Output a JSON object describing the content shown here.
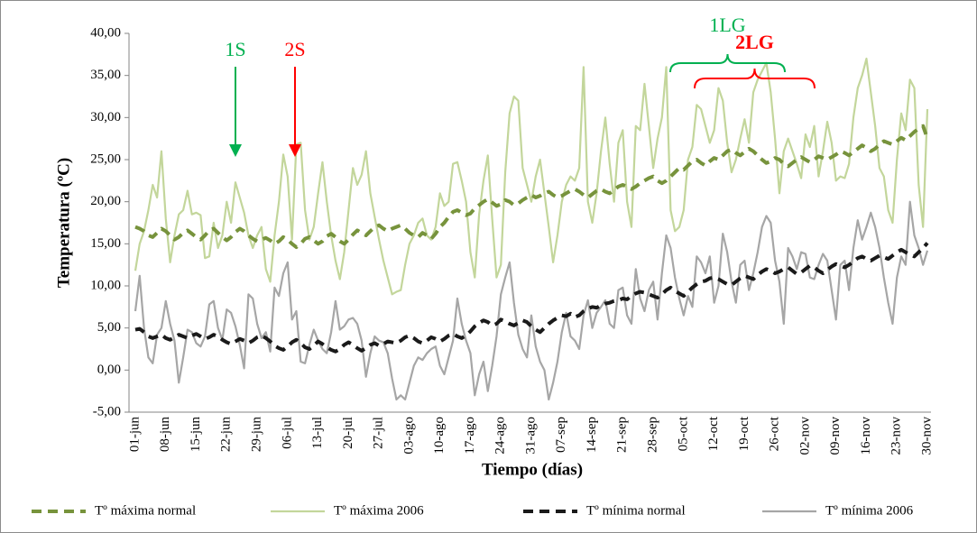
{
  "chart_data": {
    "type": "line",
    "y_label": "Temperatura (ºC)",
    "x_label": "Tiempo (días)",
    "legend": "bottom",
    "ylim": [
      -5,
      40
    ],
    "yticks": [
      {
        "value": -5,
        "label": "-5,00"
      },
      {
        "value": 0,
        "label": "0,00"
      },
      {
        "value": 5,
        "label": "5,00"
      },
      {
        "value": 10,
        "label": "10,00"
      },
      {
        "value": 15,
        "label": "15,00"
      },
      {
        "value": 20,
        "label": "20,00"
      },
      {
        "value": 25,
        "label": "25,00"
      },
      {
        "value": 30,
        "label": "30,00"
      },
      {
        "value": 35,
        "label": "35,00"
      },
      {
        "value": 40,
        "label": "40,00"
      }
    ],
    "annotations": [
      {
        "text": "1S",
        "color": "#00b050"
      },
      {
        "text": "2S",
        "color": "#ff0000"
      },
      {
        "text": "1LG",
        "color": "#00b050"
      },
      {
        "text": "2LG",
        "color": "#ff0000"
      }
    ],
    "categories": [
      "01-jun",
      null,
      null,
      null,
      null,
      null,
      null,
      "08-jun",
      null,
      null,
      null,
      null,
      null,
      null,
      "15-jun",
      null,
      null,
      null,
      null,
      null,
      null,
      "22-jun",
      null,
      null,
      null,
      null,
      null,
      null,
      "29-jun",
      null,
      null,
      null,
      null,
      null,
      null,
      "06-jul",
      null,
      null,
      null,
      null,
      null,
      null,
      "13-jul",
      null,
      null,
      null,
      null,
      null,
      null,
      "20-jul",
      null,
      null,
      null,
      null,
      null,
      null,
      "27-jul",
      null,
      null,
      null,
      null,
      null,
      null,
      "03-ago",
      null,
      null,
      null,
      null,
      null,
      null,
      "10-ago",
      null,
      null,
      null,
      null,
      null,
      null,
      "17-ago",
      null,
      null,
      null,
      null,
      null,
      null,
      "24-ago",
      null,
      null,
      null,
      null,
      null,
      null,
      "31-ago",
      null,
      null,
      null,
      null,
      null,
      null,
      "07-sep",
      null,
      null,
      null,
      null,
      null,
      null,
      "14-sep",
      null,
      null,
      null,
      null,
      null,
      null,
      "21-sep",
      null,
      null,
      null,
      null,
      null,
      null,
      "28-sep",
      null,
      null,
      null,
      null,
      null,
      null,
      "05-oct",
      null,
      null,
      null,
      null,
      null,
      null,
      "12-oct",
      null,
      null,
      null,
      null,
      null,
      null,
      "19-oct",
      null,
      null,
      null,
      null,
      null,
      null,
      "26-oct",
      null,
      null,
      null,
      null,
      null,
      null,
      "02-nov",
      null,
      null,
      null,
      null,
      null,
      null,
      "09-nov",
      null,
      null,
      null,
      null,
      null,
      null,
      "16-nov",
      null,
      null,
      null,
      null,
      null,
      null,
      "23-nov",
      null,
      null,
      null,
      null,
      null,
      null,
      "30-nov"
    ],
    "series": [
      {
        "name": "Tº máxima normal",
        "color": "#77933c",
        "dashed": true,
        "values": [
          17,
          16.8,
          16.5,
          16,
          15.8,
          16.3,
          16.8,
          16.5,
          16,
          15.5,
          15.8,
          16.3,
          16.6,
          16.2,
          15.8,
          15.5,
          16,
          16.6,
          16.8,
          16.3,
          15.8,
          15.4,
          15.8,
          16.4,
          16.8,
          16.5,
          16,
          15.6,
          15.3,
          15.5,
          15.7,
          15.4,
          15,
          15.3,
          15.8,
          15.5,
          15,
          14.6,
          15,
          15.6,
          15.8,
          15.4,
          15,
          15.3,
          15.9,
          16.2,
          15.8,
          15.3,
          15,
          15.5,
          16.1,
          16.6,
          16.3,
          16,
          16.5,
          17,
          17.2,
          16.8,
          16.5,
          16.8,
          17,
          17.2,
          16.8,
          16.3,
          16,
          15.8,
          16.3,
          16,
          15.6,
          16.2,
          17,
          17.5,
          18.2,
          18.8,
          19,
          18.7,
          18.4,
          18.6,
          19.2,
          19.6,
          20,
          20.3,
          19.9,
          19.5,
          19.7,
          20.2,
          20,
          19.6,
          19.8,
          20.2,
          20.5,
          20.8,
          20.5,
          20.7,
          21,
          21.2,
          20.8,
          20.5,
          20.7,
          21,
          21.3,
          21.5,
          21.2,
          20.8,
          20.5,
          20.9,
          21.3,
          21.5,
          21.2,
          21,
          21.4,
          21.8,
          22,
          21.8,
          21.5,
          21.8,
          22.2,
          22.5,
          22.8,
          23,
          22.5,
          22.2,
          22.5,
          23,
          23.5,
          24,
          23.8,
          24.3,
          24.8,
          25,
          24.6,
          24.3,
          24.8,
          25.2,
          25,
          25.5,
          26,
          26.2,
          25.8,
          25.5,
          25.9,
          26.3,
          26,
          25.5,
          25,
          24.6,
          24.8,
          25.2,
          25,
          24.5,
          24.2,
          24.6,
          25,
          25.3,
          25,
          24.7,
          25,
          25.4,
          25.2,
          25,
          25.3,
          25.6,
          26,
          25.8,
          25.5,
          25.9,
          26.3,
          26.7,
          26.4,
          26,
          26.3,
          26.8,
          27.2,
          27,
          26.8,
          27.2,
          27.6,
          27.3,
          27.8,
          28.3,
          28.7,
          29,
          27.5
        ]
      },
      {
        "name": "Tº máxima 2006",
        "color": "#c3d69b",
        "dashed": false,
        "values": [
          11.8,
          15,
          16.5,
          19,
          22,
          20.5,
          26,
          18,
          12.8,
          16,
          18.5,
          19,
          21.3,
          18.5,
          18.7,
          18.4,
          13.3,
          13.5,
          17.5,
          14.5,
          16,
          20,
          17.5,
          22.3,
          20.5,
          18.7,
          16,
          14.5,
          16,
          17,
          12,
          10.5,
          16,
          20,
          25.6,
          23,
          15.5,
          26.8,
          27,
          19,
          15.5,
          17,
          21,
          24.7,
          20,
          16,
          13,
          10.8,
          14,
          19,
          24,
          22,
          23.2,
          26,
          21,
          18.2,
          15.5,
          13,
          11,
          9,
          9.3,
          9.5,
          12.5,
          15,
          16,
          17.5,
          18,
          16,
          15.5,
          17,
          21,
          19.5,
          20,
          24.5,
          24.7,
          22.5,
          20,
          14,
          11,
          18.5,
          22.5,
          25.5,
          18,
          11,
          12.5,
          23.5,
          30.5,
          32.5,
          32,
          24,
          22,
          20,
          23,
          25,
          21,
          17,
          12.8,
          16,
          20,
          22,
          23,
          22.5,
          24,
          36,
          20,
          17.5,
          21,
          26,
          30,
          24.5,
          20,
          27,
          28.5,
          20,
          17,
          29,
          28.5,
          34,
          29,
          24,
          27.5,
          30,
          36,
          19,
          16.5,
          17,
          19,
          25,
          26.5,
          31.5,
          31,
          29,
          27,
          28.5,
          33.5,
          32,
          27,
          23.5,
          25,
          27.5,
          29.8,
          27,
          33,
          34.5,
          35.5,
          36.5,
          33,
          27.5,
          21,
          26,
          27.5,
          26,
          24.5,
          22.8,
          28,
          26.5,
          29,
          23,
          26,
          29.5,
          27,
          22.5,
          23,
          22.8,
          24.5,
          30,
          33.5,
          35,
          37,
          33,
          29,
          24,
          23,
          19,
          17.5,
          25,
          30.5,
          28.5,
          34.5,
          33.5,
          22,
          17,
          31
        ]
      },
      {
        "name": "Tº mínima normal",
        "color": "#1a1a1a",
        "dashed": true,
        "values": [
          4.8,
          4.9,
          4.5,
          4,
          3.8,
          4,
          4.2,
          3.8,
          3.6,
          3.9,
          4.2,
          4,
          3.8,
          4.1,
          4.3,
          4,
          3.7,
          3.9,
          4.2,
          4,
          3.6,
          3.3,
          3.1,
          3.4,
          3.7,
          3.5,
          3.2,
          3.5,
          3.9,
          4.1,
          3.8,
          3.4,
          2.9,
          2.6,
          2.4,
          2.8,
          3.3,
          3.6,
          3.2,
          2.7,
          2.5,
          2.9,
          3.4,
          3.1,
          2.7,
          2.4,
          2.2,
          2.5,
          3,
          3.3,
          3,
          2.6,
          2.3,
          2.6,
          3,
          3.2,
          2.9,
          3.1,
          3.4,
          3.3,
          3.2,
          3.5,
          3.9,
          4.1,
          3.8,
          3.4,
          3.2,
          3.5,
          3.9,
          3.7,
          3.4,
          3.7,
          4.1,
          4.3,
          4,
          3.8,
          4.1,
          4.6,
          5.2,
          5.6,
          5.9,
          5.7,
          5.3,
          5.5,
          6,
          5.8,
          5.5,
          5.3,
          5.6,
          5.9,
          5.7,
          5.2,
          4.8,
          4.5,
          5,
          5.5,
          5.9,
          6.2,
          6.5,
          6.4,
          6.7,
          6.3,
          6.5,
          7,
          7.3,
          7.5,
          7.4,
          7.7,
          7.9,
          8,
          8.2,
          8.3,
          8.5,
          8.4,
          8.8,
          9.1,
          9.3,
          9.2,
          9,
          8.8,
          8.6,
          9,
          9.5,
          9.8,
          9.4,
          9.1,
          8.8,
          9.3,
          9.8,
          10.2,
          10.5,
          10.6,
          10.9,
          11,
          10.8,
          10.5,
          10.2,
          10.1,
          10.5,
          10.9,
          11.2,
          11,
          10.8,
          11.3,
          11.7,
          12,
          11.8,
          11.5,
          11.7,
          12,
          12.2,
          11.8,
          11.4,
          11.6,
          12,
          12.4,
          12.2,
          11.8,
          11.5,
          11.9,
          12.3,
          12.6,
          12.4,
          12.2,
          12.5,
          12.9,
          13.3,
          13.5,
          13.2,
          13,
          13.3,
          13.6,
          13.4,
          13.2,
          13.6,
          14,
          14.3,
          14,
          13.7,
          13.5,
          14,
          14.5,
          15.1
        ]
      },
      {
        "name": "Tº mínima 2006",
        "color": "#a6a6a6",
        "dashed": false,
        "values": [
          7,
          11.2,
          5,
          1.5,
          0.8,
          4.2,
          5,
          8.2,
          5.5,
          3.5,
          -1.5,
          1.5,
          4.8,
          4.5,
          3.2,
          2.8,
          4,
          7.8,
          8.2,
          5,
          3.6,
          7.2,
          6.8,
          5.2,
          3,
          0.2,
          9,
          8.5,
          5.5,
          3.8,
          4.5,
          2.2,
          9.8,
          8.8,
          11.5,
          12.8,
          6,
          7,
          1,
          0.8,
          3,
          4.8,
          3.5,
          2.5,
          2,
          4.5,
          8.2,
          4.8,
          5.2,
          6,
          6.2,
          5.5,
          3.5,
          -0.8,
          2,
          4,
          3.5,
          3.3,
          2,
          -1,
          -3.5,
          -3,
          -3.5,
          -1.5,
          0.5,
          1.5,
          1.2,
          2,
          2.5,
          2.8,
          0.5,
          -0.5,
          1.5,
          3.5,
          8.5,
          5.5,
          3.5,
          2,
          -3,
          -0.5,
          1,
          -2.5,
          0.5,
          4,
          9,
          11,
          12.8,
          8,
          4.2,
          2.5,
          1.5,
          6.5,
          2.8,
          1,
          0,
          -3.5,
          -1.5,
          1,
          4.5,
          6.8,
          4,
          3.5,
          2.5,
          6.5,
          8.3,
          5,
          6.8,
          7.5,
          8.3,
          5.5,
          5,
          9.5,
          9.8,
          6.5,
          5.5,
          12,
          8.5,
          7,
          9.5,
          10.5,
          6,
          11.5,
          16,
          14.5,
          11,
          8.5,
          6.5,
          8.8,
          7.5,
          13.5,
          12.8,
          11.5,
          13.5,
          8,
          10,
          16.2,
          14,
          10.5,
          8,
          12.5,
          13,
          9.5,
          11.5,
          14,
          17,
          18.3,
          17.5,
          13,
          10.5,
          5.5,
          14.5,
          13.5,
          12,
          14,
          13.8,
          11,
          10.8,
          12.5,
          13.8,
          13,
          9.5,
          6,
          12.5,
          13,
          9.5,
          14.5,
          17.8,
          15.5,
          17,
          18.7,
          17,
          14.5,
          11,
          8,
          5.5,
          11,
          13.5,
          12.5,
          20,
          16,
          14.5,
          12.5,
          14.2
        ]
      }
    ]
  }
}
